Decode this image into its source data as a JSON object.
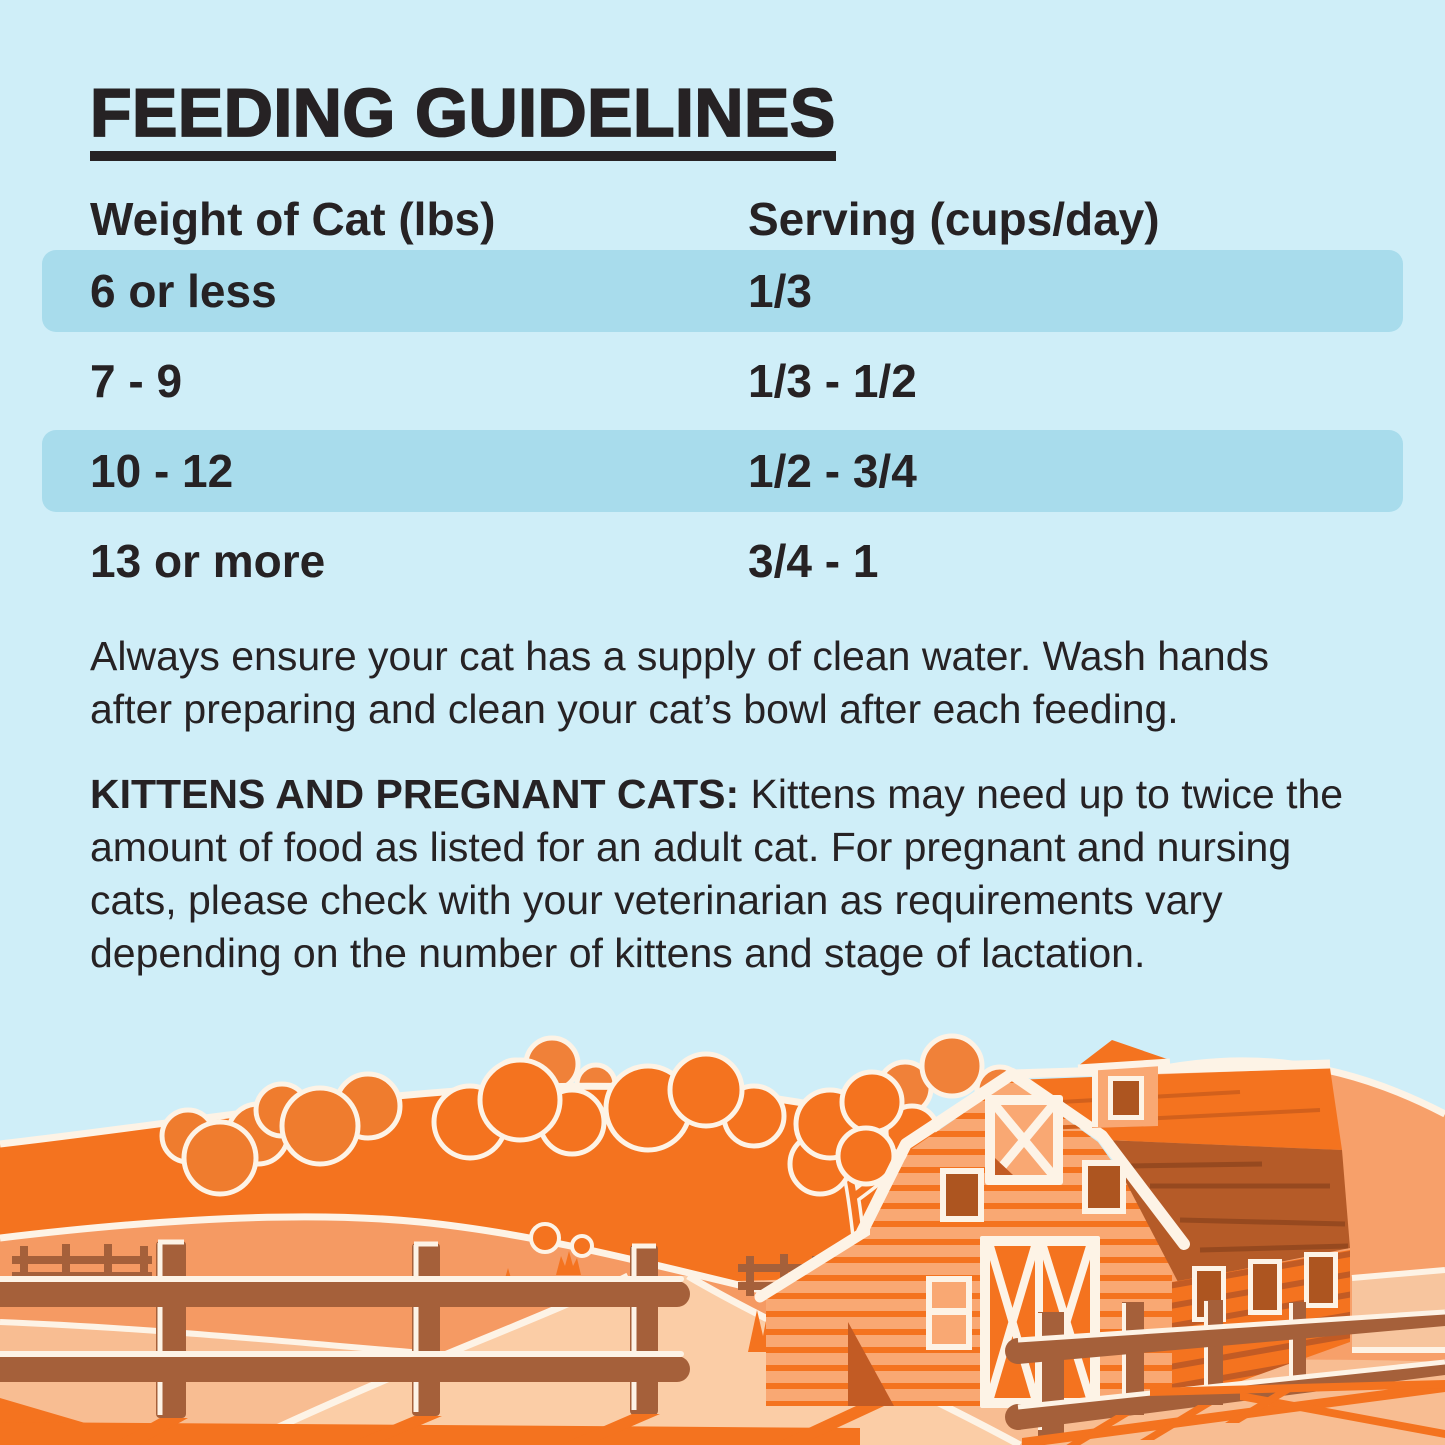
{
  "page": {
    "background_color": "#cfeef8",
    "text_color": "#262224",
    "accent_orange": "#f4731f"
  },
  "title": {
    "text": "FEEDING GUIDELINES"
  },
  "table": {
    "columns": [
      "Weight of Cat (lbs)",
      "Serving (cups/day)"
    ],
    "highlight_color": "#a8dcec",
    "rows": [
      {
        "weight": "6 or less",
        "serving": "1/3",
        "highlighted": true
      },
      {
        "weight": "7 - 9",
        "serving": "1/3 - 1/2",
        "highlighted": false
      },
      {
        "weight": "10 - 12",
        "serving": "1/2 - 3/4",
        "highlighted": true
      },
      {
        "weight": "13 or more",
        "serving": "3/4 - 1",
        "highlighted": false
      }
    ]
  },
  "notes": {
    "water": {
      "line1": "Always ensure your cat has a supply of clean water. Wash hands",
      "line2": "after preparing and clean your cat’s bowl after each feeding."
    },
    "kittens": {
      "lead": "KITTENS AND PREGNANT CATS:",
      "line1_rest": " Kittens may need up to twice the",
      "line2": "amount of food as listed for an adult cat. For pregnant and nursing",
      "line3": "cats, please check with your veterinarian as requirements vary",
      "line4": "depending on the number of kittens and stage of lactation."
    }
  },
  "illustration": {
    "alt": "Stylized orange farm scene: rolling hills with trees, a gambrel-roof barn with cupola and X-braced doors, wooden rail fences, grass tufts and cast shadows",
    "palette": {
      "sky": "#cfeef8",
      "bright_orange": "#f4731f",
      "mid_orange": "#f59a63",
      "light_peach": "#f8bd92",
      "path_peach": "#fbcda6",
      "band_peach": "#f7c59e",
      "cream_outline": "#fdf3e6",
      "fence_brown": "#a5603a",
      "roof_dark": "#b55b28",
      "siding_salmon": "#f9a873",
      "wall_stripe": "#c25b24",
      "window_pane": "#ad5520"
    }
  }
}
